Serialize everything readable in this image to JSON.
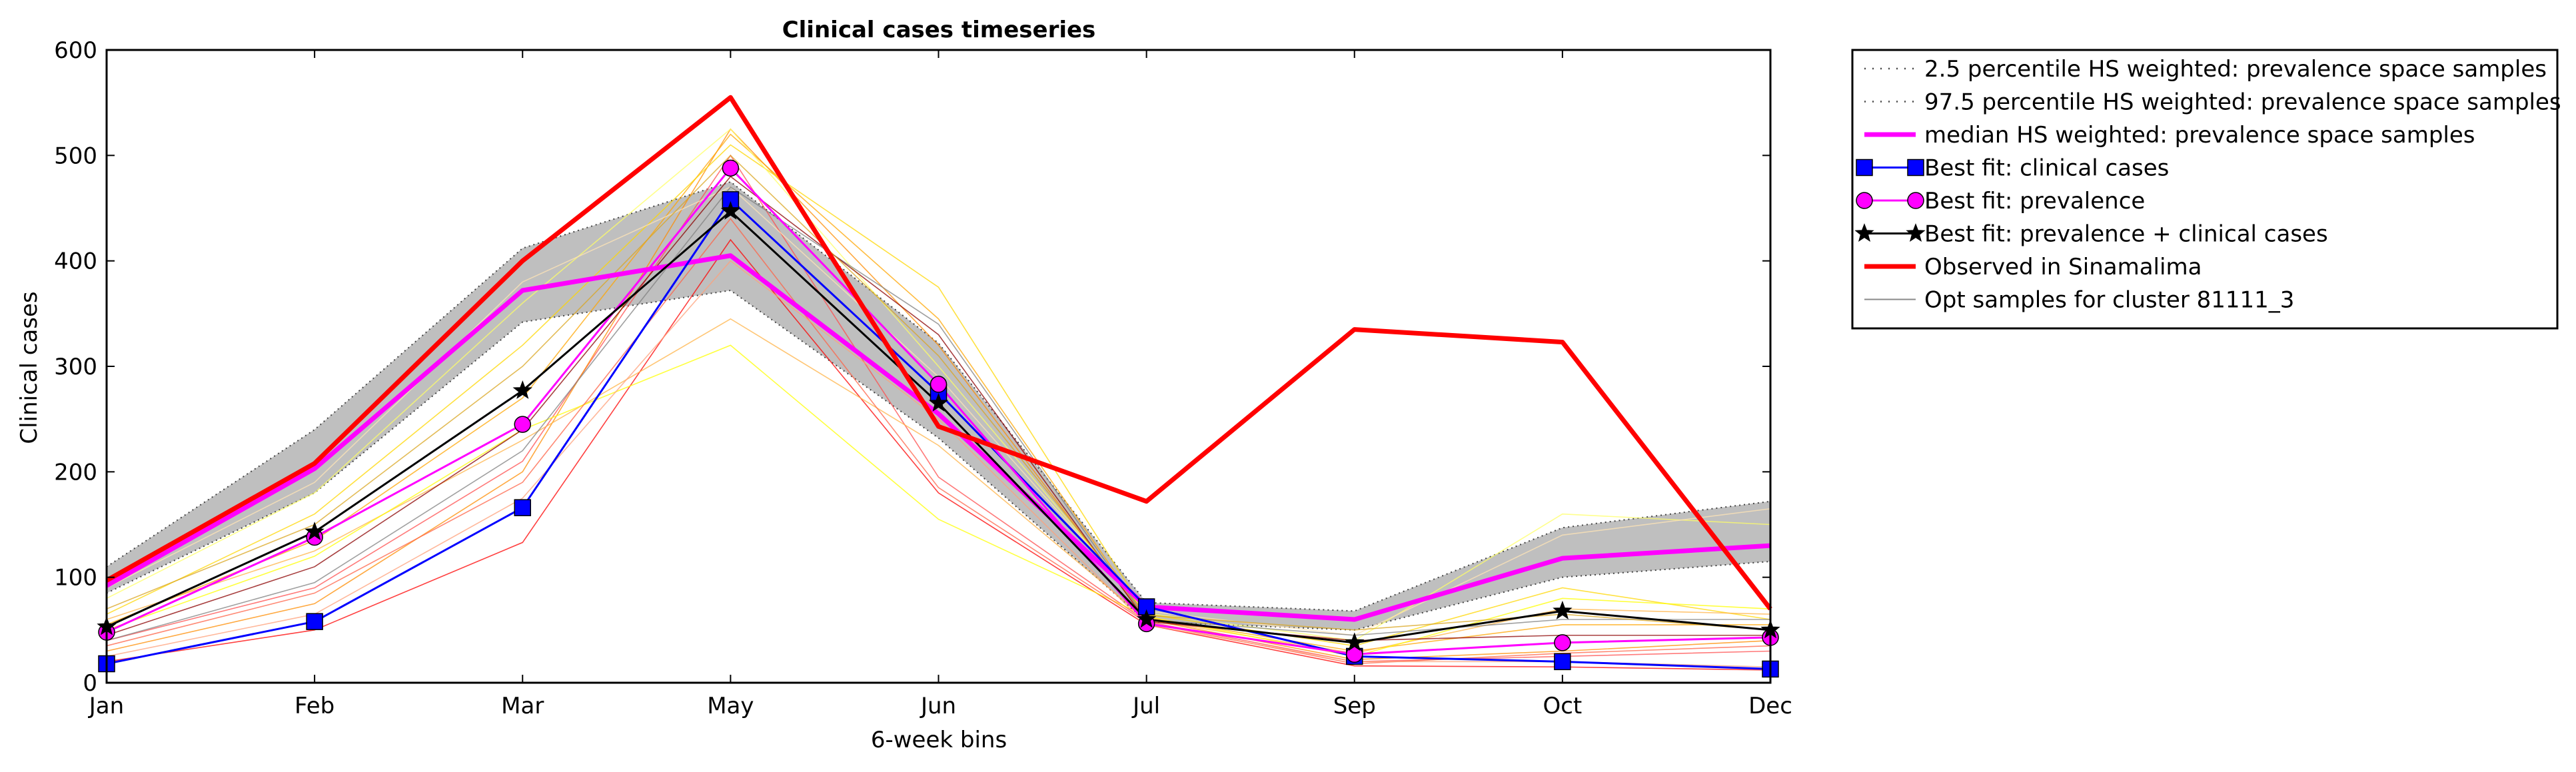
{
  "chart_data": {
    "type": "line",
    "title": "Clinical cases timeseries",
    "xlabel": "6-week bins",
    "ylabel": "Clinical cases",
    "categories": [
      "Jan",
      "Feb",
      "Mar",
      "May",
      "Jun",
      "Jul",
      "Sep",
      "Oct",
      "Dec"
    ],
    "ylim": [
      0,
      600
    ],
    "yticks": [
      0,
      100,
      200,
      300,
      400,
      500,
      600
    ],
    "grid": false,
    "legend_position": "outside-top-right",
    "band": {
      "lower_name": "2.5 percentile HS weighted: prevalence space samples",
      "upper_name": "97.5 percentile HS weighted: prevalence space samples",
      "lower": [
        85,
        180,
        342,
        372,
        232,
        58,
        50,
        100,
        115
      ],
      "upper": [
        110,
        240,
        412,
        475,
        322,
        76,
        68,
        147,
        172
      ],
      "fill_color": "#bfbfbf"
    },
    "series": [
      {
        "name": "median HS weighted: prevalence space samples",
        "color": "#ff00ff",
        "values": [
          92,
          203,
          372,
          405,
          255,
          72,
          60,
          118,
          130
        ]
      },
      {
        "name": "Best fit: clinical cases",
        "color": "#0000ff",
        "marker": "square",
        "values": [
          18,
          58,
          166,
          458,
          275,
          72,
          25,
          20,
          13
        ]
      },
      {
        "name": "Best fit: prevalence",
        "color": "#ff00ff",
        "marker": "circle",
        "values": [
          48,
          138,
          245,
          488,
          283,
          56,
          27,
          38,
          43
        ]
      },
      {
        "name": "Best fit: prevalence + clinical cases",
        "color": "#000000",
        "marker": "star",
        "values": [
          53,
          143,
          277,
          447,
          265,
          60,
          38,
          68,
          50
        ]
      },
      {
        "name": "Observed in Sinamalima",
        "color": "#ff0000",
        "values": [
          97,
          208,
          400,
          555,
          243,
          172,
          335,
          323,
          70
        ]
      }
    ],
    "samples_label": "Opt samples for cluster 81111_3",
    "samples": [
      {
        "color": "#ff0000",
        "values": [
          20,
          50,
          133,
          420,
          180,
          55,
          16,
          15,
          12
        ]
      },
      {
        "color": "#ff4d4d",
        "values": [
          40,
          90,
          210,
          500,
          195,
          58,
          20,
          25,
          30
        ]
      },
      {
        "color": "#ff8c00",
        "values": [
          30,
          75,
          200,
          525,
          320,
          60,
          22,
          30,
          40
        ]
      },
      {
        "color": "#ffa500",
        "values": [
          55,
          135,
          270,
          520,
          345,
          62,
          30,
          55,
          55
        ]
      },
      {
        "color": "#ffd700",
        "values": [
          65,
          160,
          320,
          510,
          375,
          65,
          35,
          90,
          60
        ]
      },
      {
        "color": "#ffff66",
        "values": [
          80,
          180,
          360,
          525,
          300,
          66,
          40,
          160,
          150
        ]
      },
      {
        "color": "#ffe4b5",
        "values": [
          90,
          190,
          380,
          470,
          290,
          68,
          45,
          140,
          165
        ]
      },
      {
        "color": "#ffb347",
        "values": [
          60,
          125,
          230,
          345,
          225,
          60,
          28,
          70,
          65
        ]
      },
      {
        "color": "#ffff00",
        "values": [
          50,
          120,
          240,
          320,
          155,
          63,
          25,
          80,
          70
        ]
      },
      {
        "color": "#ff6347",
        "values": [
          35,
          85,
          190,
          440,
          185,
          57,
          18,
          28,
          35
        ]
      },
      {
        "color": "#808080",
        "values": [
          40,
          95,
          220,
          470,
          340,
          60,
          45,
          60,
          60
        ]
      },
      {
        "color": "#8b0000",
        "values": [
          45,
          110,
          240,
          480,
          330,
          58,
          40,
          45,
          45
        ]
      },
      {
        "color": "#daa520",
        "values": [
          70,
          150,
          300,
          500,
          310,
          64,
          50,
          65,
          50
        ]
      },
      {
        "color": "#ffa07a",
        "values": [
          25,
          65,
          175,
          400,
          250,
          55,
          20,
          20,
          15
        ]
      }
    ]
  }
}
